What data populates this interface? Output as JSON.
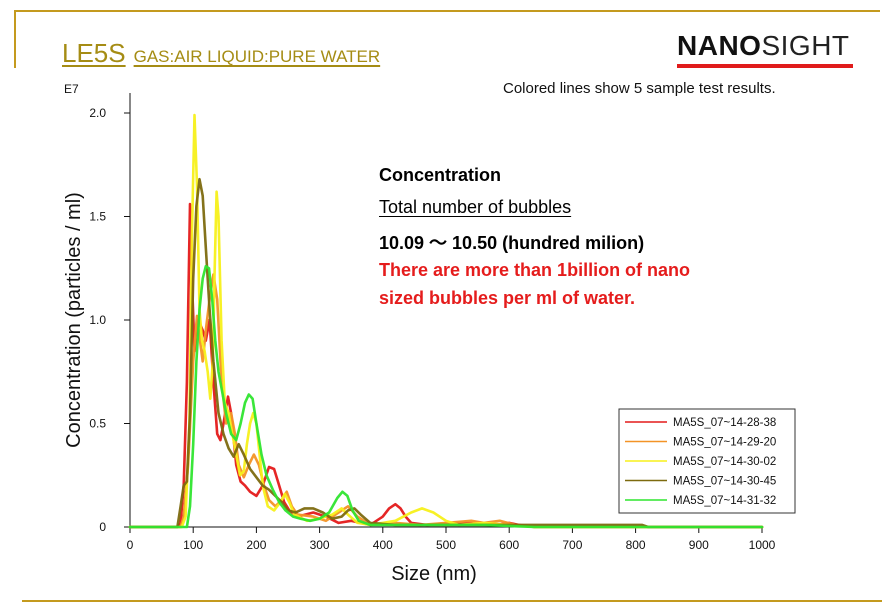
{
  "slide": {
    "title": "LE5S",
    "title_sub": "GAS:AIR   LIQUID:PURE WATER",
    "logo_bold": "NANO",
    "logo_regular": "SIGHT",
    "subtitle": "Colored lines show 5 sample test results.",
    "annotation": {
      "heading": "Concentration",
      "line1": "Total number of bubbles",
      "line2": "10.09 ～ 10.50 (hundred milion)",
      "line3": "There are more than 1billion of nano",
      "line4": "sized bubbles per ml of water."
    },
    "colors": {
      "accent": "#c49a1e",
      "title": "#a58c14",
      "logo_bar": "#e01b1b",
      "highlight": "#e51c1c"
    }
  },
  "chart_data": {
    "type": "line",
    "xlabel": "Size (nm)",
    "ylabel": "Concentration (particles / ml)",
    "y_multiplier": "E7",
    "xlim": [
      0,
      1000
    ],
    "ylim": [
      0,
      2.0
    ],
    "xticks": [
      0,
      100,
      200,
      300,
      400,
      500,
      600,
      700,
      800,
      900,
      1000
    ],
    "yticks": [
      0,
      0.5,
      1.0,
      1.5,
      2.0
    ],
    "ytick_labels": [
      "0",
      "0.5",
      "1.0",
      "1.5",
      "2.0"
    ],
    "grid": false,
    "legend_position": "bottom-right",
    "series": [
      {
        "name": "MA5S_07~14-28-38",
        "color": "#e41a1a",
        "points": [
          [
            0,
            0
          ],
          [
            75,
            0
          ],
          [
            80,
            0.02
          ],
          [
            85,
            0.2
          ],
          [
            90,
            0.7
          ],
          [
            95,
            1.56
          ],
          [
            98,
            1.2
          ],
          [
            102,
            0.85
          ],
          [
            108,
            1.0
          ],
          [
            115,
            0.95
          ],
          [
            120,
            0.9
          ],
          [
            126,
            1.0
          ],
          [
            132,
            0.7
          ],
          [
            138,
            0.45
          ],
          [
            143,
            0.42
          ],
          [
            148,
            0.5
          ],
          [
            155,
            0.63
          ],
          [
            160,
            0.55
          ],
          [
            168,
            0.3
          ],
          [
            175,
            0.22
          ],
          [
            182,
            0.2
          ],
          [
            190,
            0.17
          ],
          [
            200,
            0.15
          ],
          [
            210,
            0.2
          ],
          [
            220,
            0.29
          ],
          [
            228,
            0.28
          ],
          [
            236,
            0.2
          ],
          [
            244,
            0.12
          ],
          [
            252,
            0.08
          ],
          [
            265,
            0.05
          ],
          [
            290,
            0.07
          ],
          [
            310,
            0.05
          ],
          [
            330,
            0.02
          ],
          [
            350,
            0.03
          ],
          [
            380,
            0.01
          ],
          [
            400,
            0.05
          ],
          [
            410,
            0.09
          ],
          [
            420,
            0.11
          ],
          [
            428,
            0.09
          ],
          [
            436,
            0.05
          ],
          [
            445,
            0.02
          ],
          [
            470,
            0.01
          ],
          [
            520,
            0.02
          ],
          [
            560,
            0.02
          ],
          [
            580,
            0.01
          ],
          [
            600,
            0.02
          ],
          [
            615,
            0.01
          ],
          [
            640,
            0
          ],
          [
            1000,
            0
          ]
        ]
      },
      {
        "name": "MA5S_07~14-29-20",
        "color": "#f39326",
        "points": [
          [
            0,
            0
          ],
          [
            80,
            0
          ],
          [
            85,
            0.05
          ],
          [
            92,
            0.3
          ],
          [
            100,
            0.8
          ],
          [
            106,
            1.02
          ],
          [
            110,
            0.92
          ],
          [
            115,
            0.8
          ],
          [
            120,
            0.95
          ],
          [
            126,
            1.1
          ],
          [
            132,
            1.22
          ],
          [
            138,
            1.1
          ],
          [
            145,
            0.7
          ],
          [
            152,
            0.5
          ],
          [
            160,
            0.55
          ],
          [
            166,
            0.45
          ],
          [
            172,
            0.3
          ],
          [
            180,
            0.24
          ],
          [
            188,
            0.3
          ],
          [
            196,
            0.35
          ],
          [
            204,
            0.3
          ],
          [
            212,
            0.2
          ],
          [
            220,
            0.13
          ],
          [
            230,
            0.1
          ],
          [
            240,
            0.13
          ],
          [
            248,
            0.17
          ],
          [
            256,
            0.1
          ],
          [
            265,
            0.06
          ],
          [
            290,
            0.05
          ],
          [
            310,
            0.03
          ],
          [
            330,
            0.07
          ],
          [
            345,
            0.1
          ],
          [
            360,
            0.05
          ],
          [
            380,
            0.01
          ],
          [
            420,
            0.02
          ],
          [
            460,
            0.01
          ],
          [
            500,
            0.02
          ],
          [
            540,
            0.03
          ],
          [
            560,
            0.02
          ],
          [
            585,
            0.03
          ],
          [
            610,
            0.01
          ],
          [
            640,
            0
          ],
          [
            1000,
            0
          ]
        ]
      },
      {
        "name": "MA5S_07~14-30-02",
        "color": "#f7f01a",
        "points": [
          [
            0,
            0
          ],
          [
            82,
            0
          ],
          [
            88,
            0.05
          ],
          [
            94,
            0.5
          ],
          [
            98,
            1.4
          ],
          [
            102,
            1.99
          ],
          [
            106,
            1.65
          ],
          [
            110,
            1.05
          ],
          [
            114,
            0.9
          ],
          [
            118,
            0.85
          ],
          [
            123,
            0.75
          ],
          [
            127,
            0.62
          ],
          [
            131,
            0.8
          ],
          [
            134,
            1.25
          ],
          [
            137,
            1.62
          ],
          [
            140,
            1.5
          ],
          [
            145,
            0.9
          ],
          [
            150,
            0.6
          ],
          [
            156,
            0.55
          ],
          [
            162,
            0.45
          ],
          [
            168,
            0.35
          ],
          [
            174,
            0.25
          ],
          [
            180,
            0.27
          ],
          [
            185,
            0.4
          ],
          [
            190,
            0.5
          ],
          [
            195,
            0.55
          ],
          [
            200,
            0.5
          ],
          [
            205,
            0.35
          ],
          [
            210,
            0.2
          ],
          [
            218,
            0.1
          ],
          [
            228,
            0.08
          ],
          [
            238,
            0.12
          ],
          [
            245,
            0.16
          ],
          [
            252,
            0.12
          ],
          [
            260,
            0.06
          ],
          [
            280,
            0.03
          ],
          [
            300,
            0.04
          ],
          [
            320,
            0.06
          ],
          [
            335,
            0.09
          ],
          [
            345,
            0.06
          ],
          [
            360,
            0.02
          ],
          [
            380,
            0.01
          ],
          [
            420,
            0.03
          ],
          [
            445,
            0.07
          ],
          [
            462,
            0.09
          ],
          [
            480,
            0.07
          ],
          [
            500,
            0.03
          ],
          [
            520,
            0.01
          ],
          [
            560,
            0.02
          ],
          [
            600,
            0.01
          ],
          [
            640,
            0
          ],
          [
            1000,
            0
          ]
        ]
      },
      {
        "name": "MA5S_07~14-30-45",
        "color": "#7d6a0f",
        "points": [
          [
            0,
            0
          ],
          [
            75,
            0
          ],
          [
            80,
            0.1
          ],
          [
            85,
            0.2
          ],
          [
            90,
            0.22
          ],
          [
            95,
            0.55
          ],
          [
            100,
            1.2
          ],
          [
            105,
            1.55
          ],
          [
            110,
            1.68
          ],
          [
            115,
            1.6
          ],
          [
            120,
            1.35
          ],
          [
            126,
            1.05
          ],
          [
            132,
            0.8
          ],
          [
            140,
            0.55
          ],
          [
            148,
            0.45
          ],
          [
            156,
            0.38
          ],
          [
            164,
            0.34
          ],
          [
            172,
            0.4
          ],
          [
            180,
            0.35
          ],
          [
            190,
            0.28
          ],
          [
            200,
            0.24
          ],
          [
            210,
            0.2
          ],
          [
            220,
            0.18
          ],
          [
            230,
            0.15
          ],
          [
            240,
            0.12
          ],
          [
            250,
            0.08
          ],
          [
            262,
            0.07
          ],
          [
            276,
            0.09
          ],
          [
            290,
            0.09
          ],
          [
            305,
            0.07
          ],
          [
            320,
            0.04
          ],
          [
            335,
            0.05
          ],
          [
            345,
            0.08
          ],
          [
            355,
            0.09
          ],
          [
            365,
            0.06
          ],
          [
            380,
            0.02
          ],
          [
            420,
            0.01
          ],
          [
            480,
            0.01
          ],
          [
            560,
            0.01
          ],
          [
            640,
            0.01
          ],
          [
            700,
            0.01
          ],
          [
            760,
            0.01
          ],
          [
            790,
            0.01
          ],
          [
            800,
            0.01
          ],
          [
            810,
            0.01
          ],
          [
            820,
            0
          ],
          [
            1000,
            0
          ]
        ]
      },
      {
        "name": "MA5S_07~14-31-32",
        "color": "#2fe52f",
        "points": [
          [
            0,
            0
          ],
          [
            90,
            0
          ],
          [
            95,
            0.1
          ],
          [
            100,
            0.4
          ],
          [
            105,
            0.8
          ],
          [
            110,
            1.05
          ],
          [
            115,
            1.2
          ],
          [
            120,
            1.26
          ],
          [
            125,
            1.25
          ],
          [
            130,
            1.1
          ],
          [
            135,
            0.9
          ],
          [
            140,
            0.75
          ],
          [
            146,
            0.65
          ],
          [
            152,
            0.55
          ],
          [
            160,
            0.45
          ],
          [
            168,
            0.42
          ],
          [
            175,
            0.5
          ],
          [
            182,
            0.6
          ],
          [
            188,
            0.64
          ],
          [
            194,
            0.62
          ],
          [
            200,
            0.5
          ],
          [
            208,
            0.35
          ],
          [
            216,
            0.25
          ],
          [
            226,
            0.18
          ],
          [
            236,
            0.12
          ],
          [
            246,
            0.08
          ],
          [
            258,
            0.05
          ],
          [
            270,
            0.04
          ],
          [
            285,
            0.03
          ],
          [
            300,
            0.04
          ],
          [
            315,
            0.07
          ],
          [
            328,
            0.14
          ],
          [
            336,
            0.17
          ],
          [
            344,
            0.15
          ],
          [
            352,
            0.08
          ],
          [
            362,
            0.03
          ],
          [
            380,
            0.01
          ],
          [
            420,
            0.01
          ],
          [
            480,
            0.01
          ],
          [
            560,
            0.01
          ],
          [
            640,
            0
          ],
          [
            1000,
            0
          ]
        ]
      }
    ]
  }
}
